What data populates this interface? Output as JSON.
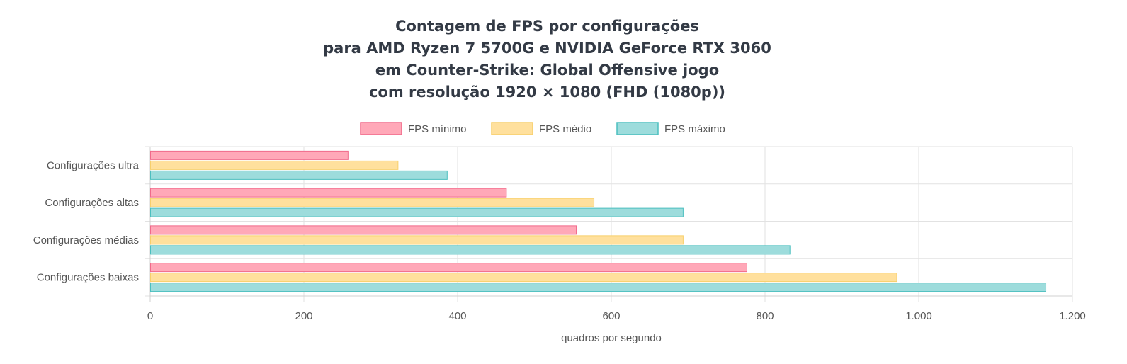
{
  "chart_data": {
    "type": "bar",
    "orientation": "horizontal",
    "title": [
      "Contagem de FPS por configurações",
      "para AMD Ryzen 7 5700G e NVIDIA GeForce RTX 3060",
      "em Counter-Strike: Global Offensive jogo",
      "com resolução 1920 × 1080 (FHD (1080p))"
    ],
    "categories": [
      "Configurações ultra",
      "Configurações altas",
      "Configurações médias",
      "Configurações baixas"
    ],
    "series": [
      {
        "name": "FPS mínimo",
        "values": [
          257,
          463,
          554,
          776
        ],
        "fill": "#ffa8b8",
        "stroke": "#f06a8a"
      },
      {
        "name": "FPS médio",
        "values": [
          322,
          577,
          693,
          971
        ],
        "fill": "#ffe09d",
        "stroke": "#f7cf6b"
      },
      {
        "name": "FPS máximo",
        "values": [
          386,
          693,
          832,
          1165
        ],
        "fill": "#9ddcdc",
        "stroke": "#4bbfbf"
      }
    ],
    "xlabel": "quadros por segundo",
    "ylabel": "",
    "xlim": [
      0,
      1200
    ],
    "xticks": [
      0,
      200,
      400,
      600,
      800,
      1000,
      1200
    ],
    "xtick_labels": [
      "0",
      "200",
      "400",
      "600",
      "800",
      "1.000",
      "1.200"
    ],
    "grid": true,
    "legend": "top-center"
  }
}
